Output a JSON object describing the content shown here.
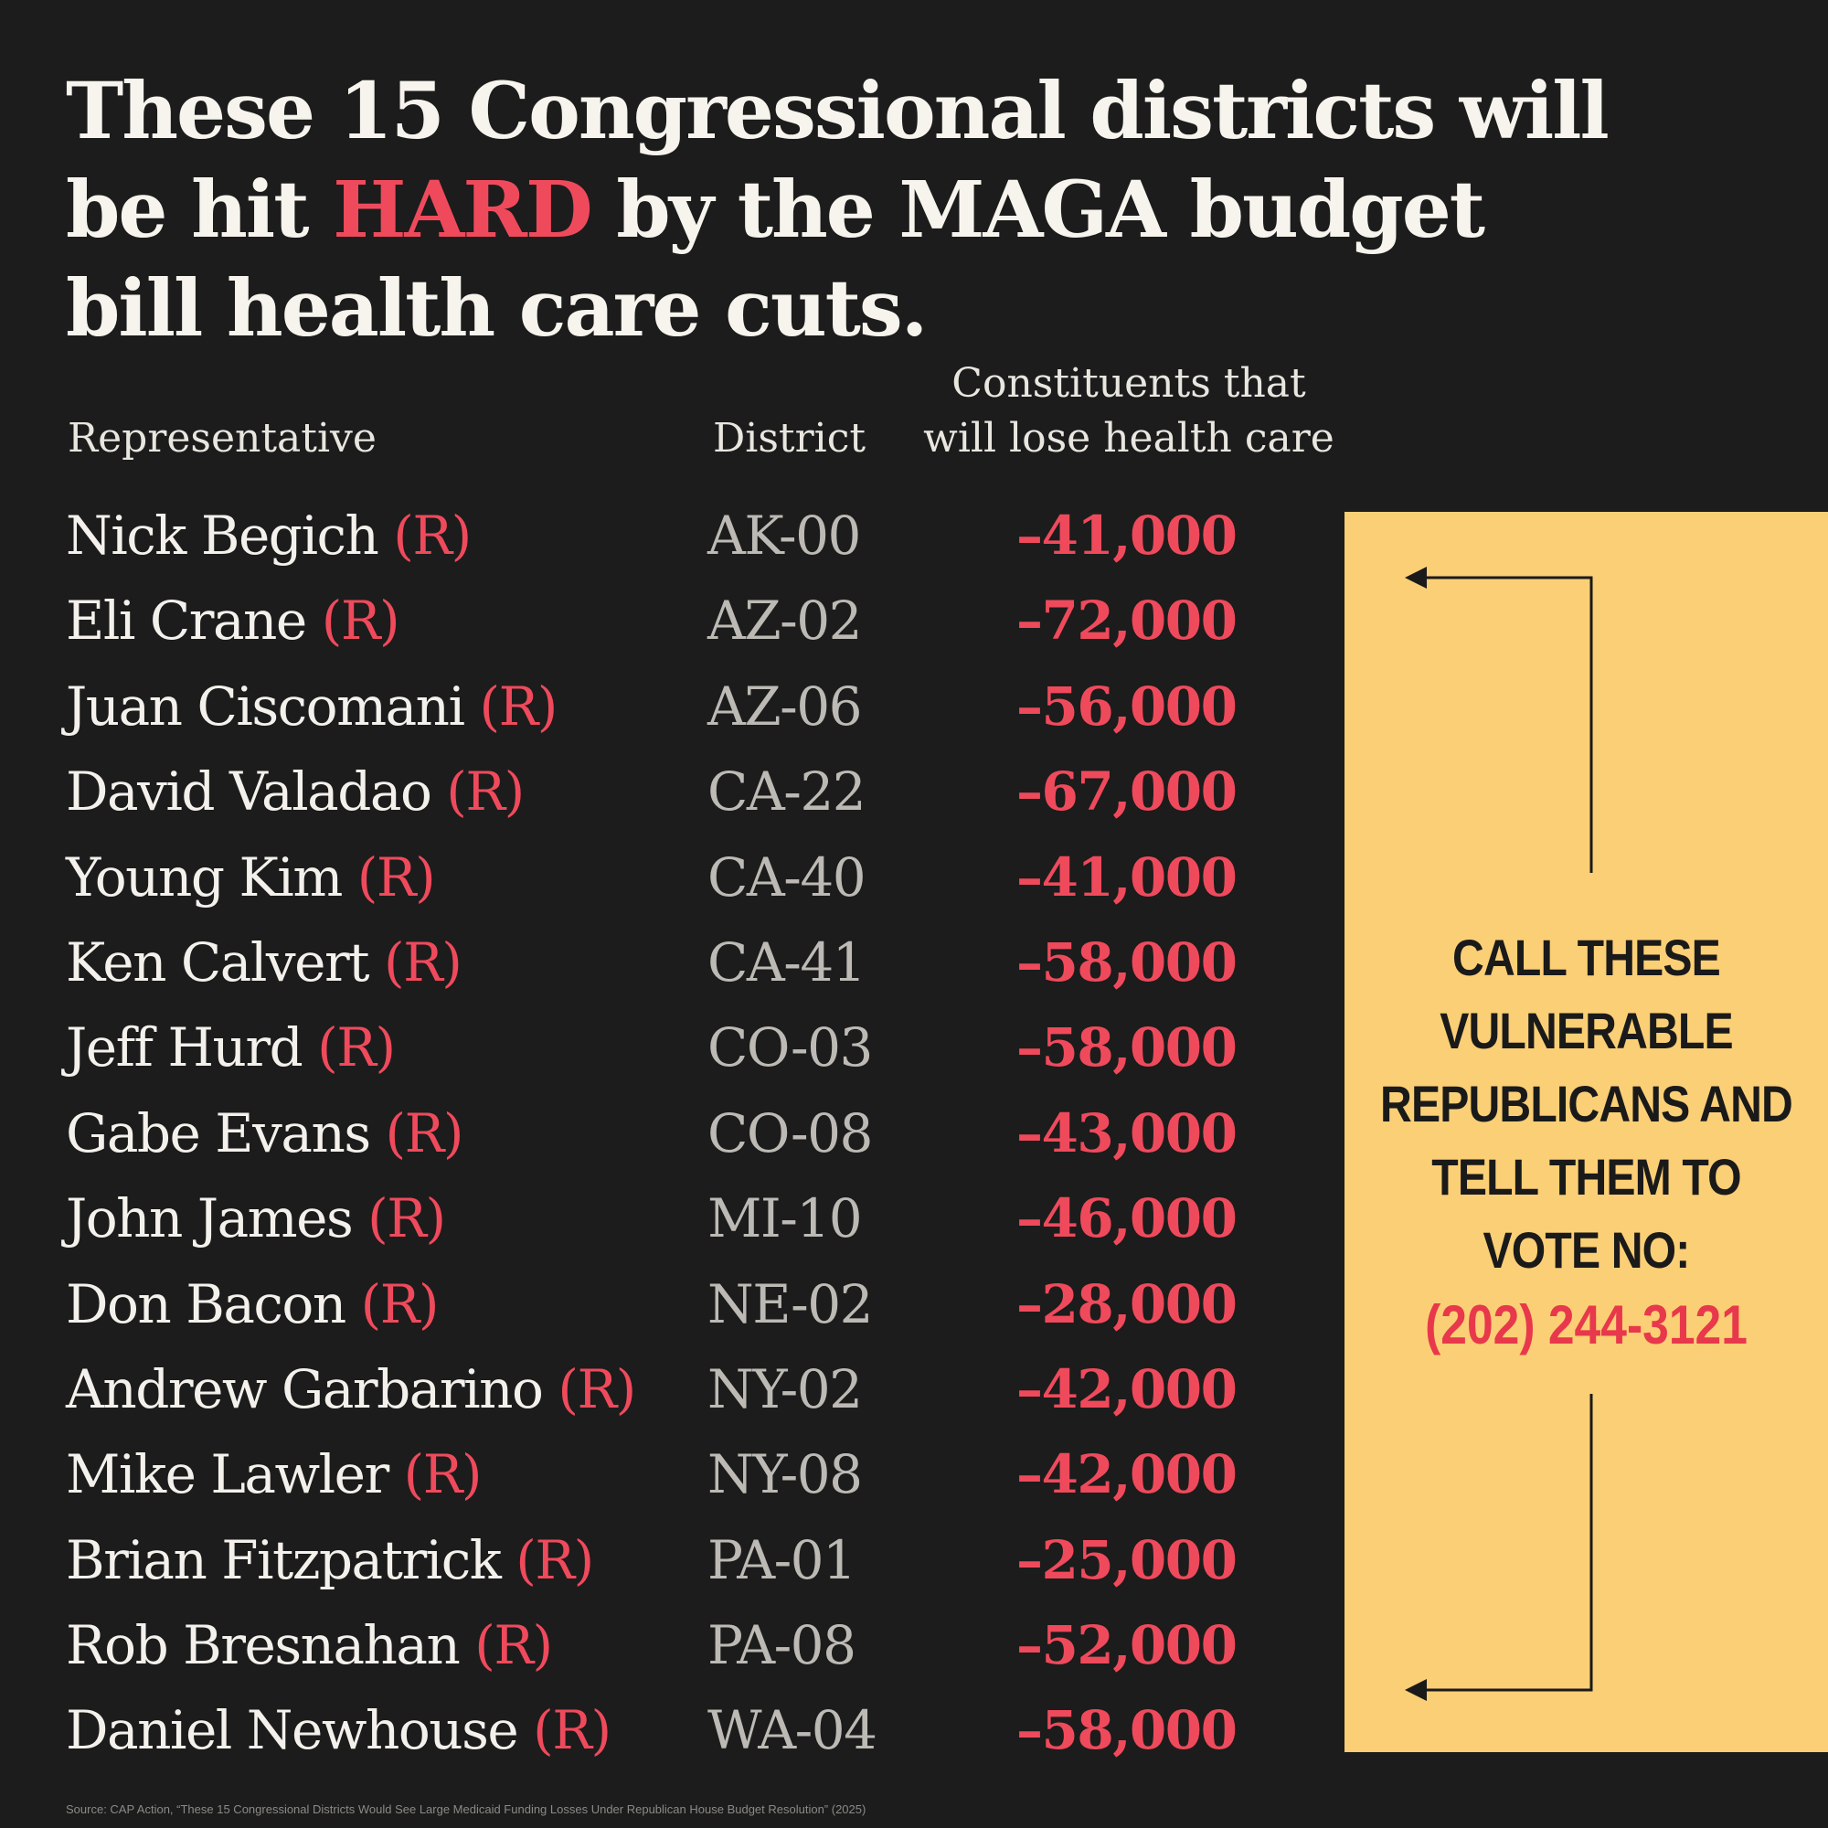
{
  "headline": {
    "part1": "These 15 Congressional districts will be hit ",
    "highlight": "HARD",
    "part2": " by the MAGA budget bill health care cuts."
  },
  "columns": {
    "representative": "Representative",
    "district": "District",
    "loss": "Constituents that will lose health care"
  },
  "rows": [
    {
      "name": "Nick Begich",
      "party": "(R)",
      "district": "AK-00",
      "loss": "–41,000"
    },
    {
      "name": "Eli Crane",
      "party": "(R)",
      "district": "AZ-02",
      "loss": "–72,000"
    },
    {
      "name": "Juan Ciscomani",
      "party": "(R)",
      "district": "AZ-06",
      "loss": "–56,000"
    },
    {
      "name": "David Valadao",
      "party": "(R)",
      "district": "CA-22",
      "loss": "–67,000"
    },
    {
      "name": "Young Kim",
      "party": "(R)",
      "district": "CA-40",
      "loss": "–41,000"
    },
    {
      "name": "Ken Calvert",
      "party": "(R)",
      "district": "CA-41",
      "loss": "–58,000"
    },
    {
      "name": "Jeff Hurd",
      "party": "(R)",
      "district": "CO-03",
      "loss": "–58,000"
    },
    {
      "name": "Gabe Evans",
      "party": "(R)",
      "district": "CO-08",
      "loss": "–43,000"
    },
    {
      "name": "John James",
      "party": "(R)",
      "district": "MI-10",
      "loss": "–46,000"
    },
    {
      "name": "Don Bacon",
      "party": "(R)",
      "district": "NE-02",
      "loss": "–28,000"
    },
    {
      "name": "Andrew Garbarino",
      "party": "(R)",
      "district": "NY-02",
      "loss": "–42,000"
    },
    {
      "name": "Mike Lawler",
      "party": "(R)",
      "district": "NY-08",
      "loss": "–42,000"
    },
    {
      "name": "Brian Fitzpatrick",
      "party": "(R)",
      "district": "PA-01",
      "loss": "–25,000"
    },
    {
      "name": "Rob Bresnahan",
      "party": "(R)",
      "district": "PA-08",
      "loss": "–52,000"
    },
    {
      "name": "Daniel Newhouse",
      "party": "(R)",
      "district": "WA-04",
      "loss": "–58,000"
    }
  ],
  "cta": {
    "message": "CALL THESE VULNERABLE REPUBLICANS AND TELL THEM TO VOTE NO:",
    "phone": "(202) 244-3121"
  },
  "source": "Source: CAP Action, “These 15 Congressional Districts Would See Large Medicaid Funding Losses Under Republican House Budget Resolution” (2025)",
  "colors": {
    "background": "#1c1c1c",
    "accent_red": "#ef4a5c",
    "panel_yellow": "#fbcf75"
  }
}
